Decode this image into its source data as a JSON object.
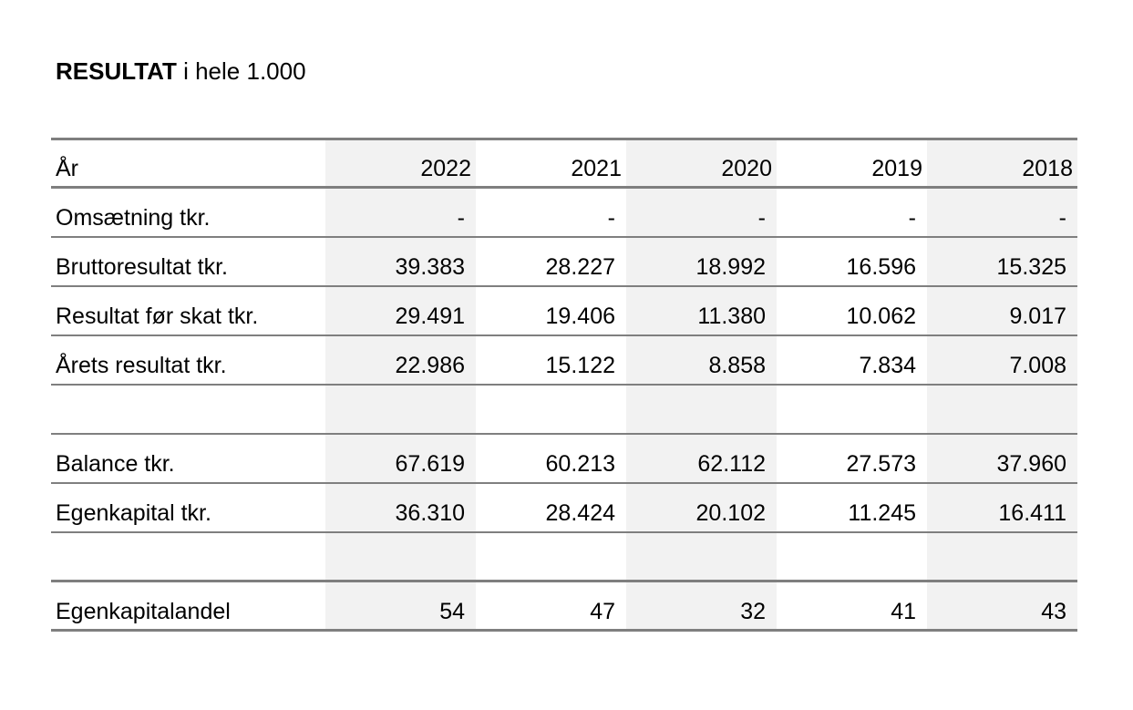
{
  "title": {
    "bold": "RESULTAT",
    "rest": " i hele 1.000"
  },
  "table": {
    "header": {
      "label": "År",
      "years": [
        "2022",
        "2021",
        "2020",
        "2019",
        "2018"
      ]
    },
    "rows": [
      {
        "label": "Omsætning tkr.",
        "values": [
          "-",
          "-",
          "-",
          "-",
          "-"
        ]
      },
      {
        "label": "Bruttoresultat tkr.",
        "values": [
          "39.383",
          "28.227",
          "18.992",
          "16.596",
          "15.325"
        ]
      },
      {
        "label": "Resultat før skat tkr.",
        "values": [
          "29.491",
          "19.406",
          "11.380",
          "10.062",
          "9.017"
        ]
      },
      {
        "label": "Årets resultat tkr.",
        "values": [
          "22.986",
          "15.122",
          "8.858",
          "7.834",
          "7.008"
        ]
      },
      {
        "label": "",
        "values": [
          "",
          "",
          "",
          "",
          ""
        ]
      },
      {
        "label": "Balance tkr.",
        "values": [
          "67.619",
          "60.213",
          "62.112",
          "27.573",
          "37.960"
        ]
      },
      {
        "label": "Egenkapital tkr.",
        "values": [
          "36.310",
          "28.424",
          "20.102",
          "11.245",
          "16.411"
        ]
      },
      {
        "label": "",
        "values": [
          "",
          "",
          "",
          "",
          ""
        ]
      },
      {
        "label": "Egenkapitalandel",
        "values": [
          "54",
          "47",
          "32",
          "41",
          "43"
        ]
      }
    ]
  },
  "colors": {
    "rule": "#7f7f7f",
    "shade": "#f2f2f2"
  }
}
